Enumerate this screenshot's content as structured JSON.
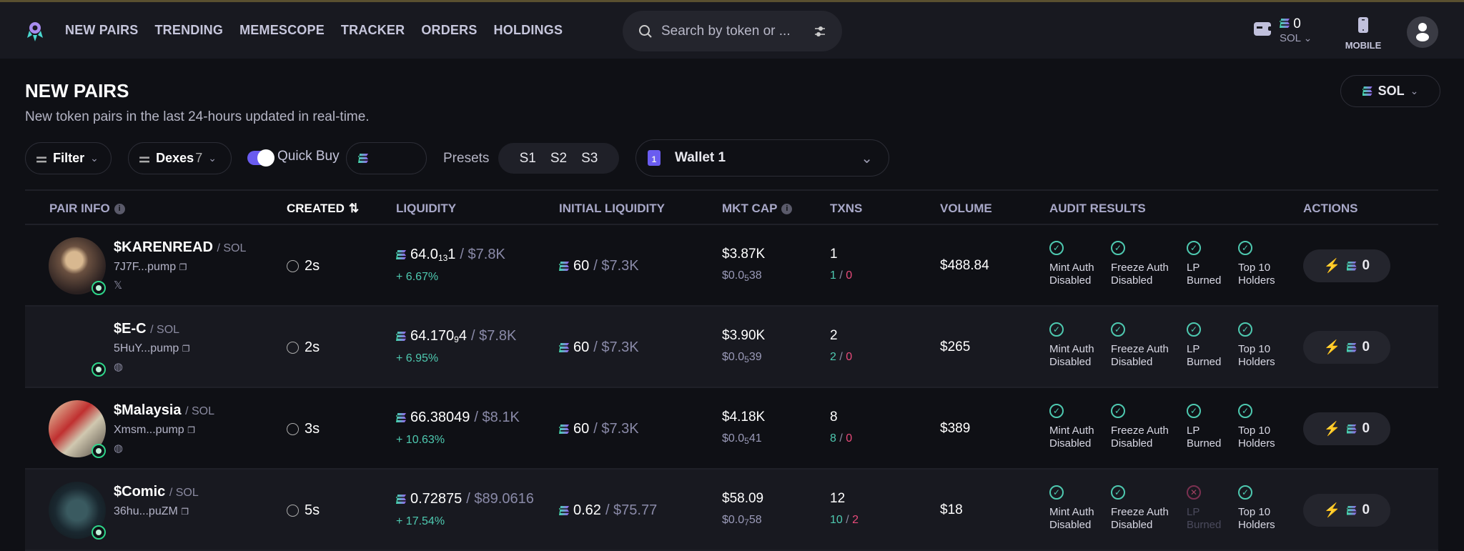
{
  "nav": {
    "items": [
      "NEW PAIRS",
      "TRENDING",
      "MEMESCOPE",
      "TRACKER",
      "ORDERS",
      "HOLDINGS"
    ]
  },
  "search": {
    "placeholder": "Search by token or ..."
  },
  "wallet": {
    "balance": "0",
    "currency": "SOL"
  },
  "mobile_label": "MOBILE",
  "page": {
    "title": "NEW PAIRS",
    "subtitle": "New token pairs in the last 24-hours updated in real-time.",
    "chain": "SOL"
  },
  "filters": {
    "filter": "Filter",
    "dexes": "Dexes",
    "dexes_count": "7",
    "quick_buy": "Quick Buy",
    "quick_buy_on": true,
    "presets_label": "Presets",
    "presets": [
      "S1",
      "S2",
      "S3"
    ],
    "wallet": "Wallet 1",
    "wallet_num": "1"
  },
  "colors": {
    "accent": "#6a5cf0",
    "buy": "#4ec9b0",
    "sell": "#e84a7a"
  },
  "table": {
    "headers": [
      "PAIR INFO",
      "CREATED",
      "LIQUIDITY",
      "INITIAL LIQUIDITY",
      "MKT CAP",
      "TXNS",
      "VOLUME",
      "AUDIT RESULTS",
      "ACTIONS"
    ],
    "rows": [
      {
        "symbol": "$KARENREAD",
        "quote": "/ SOL",
        "address": "7J7F...pump",
        "social": "𝕏",
        "created": "2s",
        "liq_pre": "64.0",
        "liq_sub": "13",
        "liq_post": "1",
        "liq_usd": "/ $7.8K",
        "liq_change": "+ 6.67%",
        "init_sol": "60",
        "init_usd": "/ $7.3K",
        "mcap": "$3.87K",
        "price_pre": "$0.0",
        "price_sub": "5",
        "price_post": "38",
        "txns": "1",
        "buys": "1",
        "sells": "0",
        "volume": "$488.84",
        "audit": [
          {
            "l1": "Mint Auth",
            "l2": "Disabled",
            "ok": true
          },
          {
            "l1": "Freeze Auth",
            "l2": "Disabled",
            "ok": true
          },
          {
            "l1": "LP",
            "l2": "Burned",
            "ok": true
          },
          {
            "l1": "Top 10",
            "l2": "Holders",
            "ok": true
          }
        ],
        "action": "0"
      },
      {
        "symbol": "$E-C",
        "quote": "/ SOL",
        "address": "5HuY...pump",
        "social": "◍",
        "created": "2s",
        "liq_pre": "64.170",
        "liq_sub": "9",
        "liq_post": "4",
        "liq_usd": "/ $7.8K",
        "liq_change": "+ 6.95%",
        "init_sol": "60",
        "init_usd": "/ $7.3K",
        "mcap": "$3.90K",
        "price_pre": "$0.0",
        "price_sub": "5",
        "price_post": "39",
        "txns": "2",
        "buys": "2",
        "sells": "0",
        "volume": "$265",
        "audit": [
          {
            "l1": "Mint Auth",
            "l2": "Disabled",
            "ok": true
          },
          {
            "l1": "Freeze Auth",
            "l2": "Disabled",
            "ok": true
          },
          {
            "l1": "LP",
            "l2": "Burned",
            "ok": true
          },
          {
            "l1": "Top 10",
            "l2": "Holders",
            "ok": true
          }
        ],
        "action": "0"
      },
      {
        "symbol": "$Malaysia",
        "quote": "/ SOL",
        "address": "Xmsm...pump",
        "social": "◍",
        "created": "3s",
        "liq_pre": "66.38049",
        "liq_sub": "",
        "liq_post": "",
        "liq_usd": "/ $8.1K",
        "liq_change": "+ 10.63%",
        "init_sol": "60",
        "init_usd": "/ $7.3K",
        "mcap": "$4.18K",
        "price_pre": "$0.0",
        "price_sub": "5",
        "price_post": "41",
        "txns": "8",
        "buys": "8",
        "sells": "0",
        "volume": "$389",
        "audit": [
          {
            "l1": "Mint Auth",
            "l2": "Disabled",
            "ok": true
          },
          {
            "l1": "Freeze Auth",
            "l2": "Disabled",
            "ok": true
          },
          {
            "l1": "LP",
            "l2": "Burned",
            "ok": true
          },
          {
            "l1": "Top 10",
            "l2": "Holders",
            "ok": true
          }
        ],
        "action": "0"
      },
      {
        "symbol": "$Comic",
        "quote": "/ SOL",
        "address": "36hu...puZM",
        "social": "",
        "created": "5s",
        "liq_pre": "0.72875",
        "liq_sub": "",
        "liq_post": "",
        "liq_usd": "/ $89.0616",
        "liq_change": "+ 17.54%",
        "init_sol": "0.62",
        "init_usd": "/ $75.77",
        "mcap": "$58.09",
        "price_pre": "$0.0",
        "price_sub": "7",
        "price_post": "58",
        "txns": "12",
        "buys": "10",
        "sells": "2",
        "volume": "$18",
        "audit": [
          {
            "l1": "Mint Auth",
            "l2": "Disabled",
            "ok": true
          },
          {
            "l1": "Freeze Auth",
            "l2": "Disabled",
            "ok": true
          },
          {
            "l1": "LP",
            "l2": "Burned",
            "ok": false
          },
          {
            "l1": "Top 10",
            "l2": "Holders",
            "ok": true
          }
        ],
        "action": "0"
      }
    ]
  }
}
